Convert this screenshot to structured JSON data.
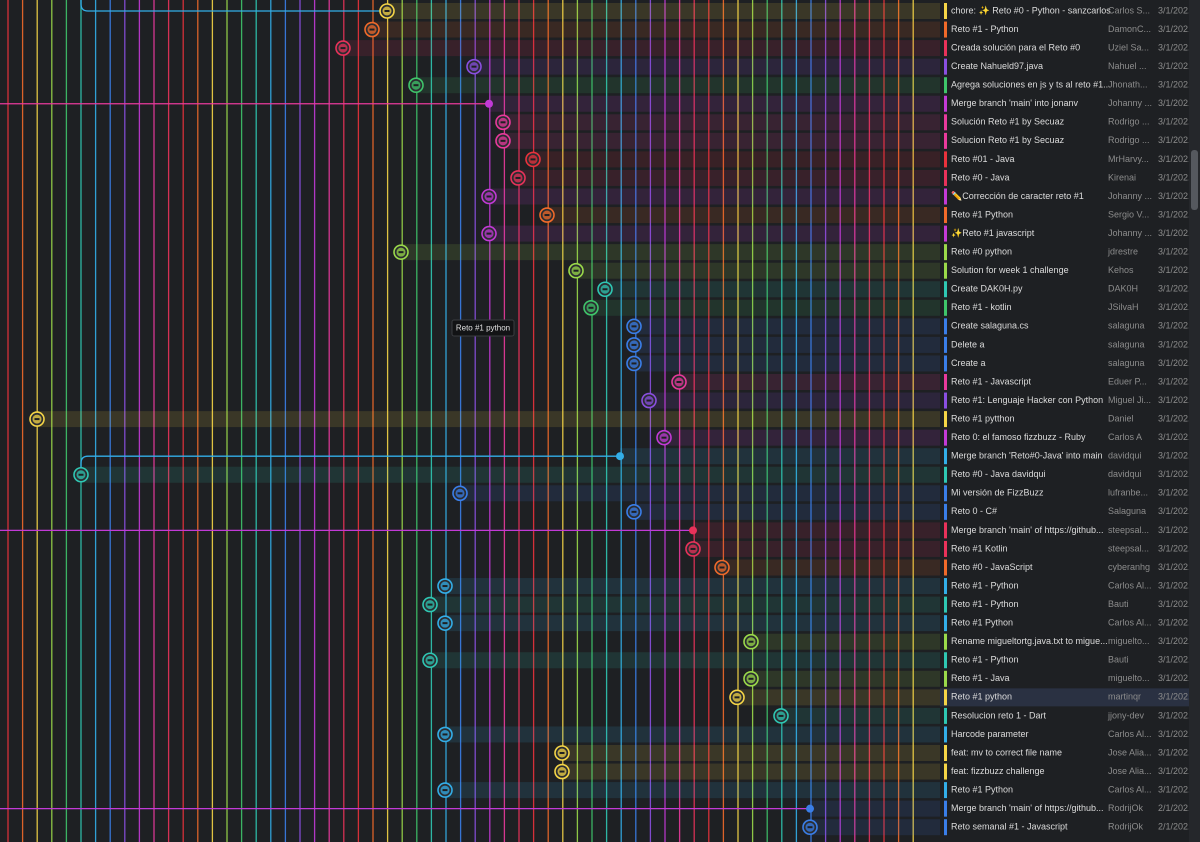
{
  "commits": [
    {
      "message": "chore: ✨ Reto #0 - Python - sanzcarlos",
      "author": "Carlos S...",
      "date": "3/1/202..."
    },
    {
      "message": "Reto #1 - Python",
      "author": "DamonC...",
      "date": "3/1/202..."
    },
    {
      "message": "Creada solución para el Reto #0",
      "author": "Uziel Sa...",
      "date": "3/1/202..."
    },
    {
      "message": "Create Nahueld97.java",
      "author": "Nahuel ...",
      "date": "3/1/202..."
    },
    {
      "message": "Agrega soluciones en js y ts al reto #1...",
      "author": "Jhonath...",
      "date": "3/1/202..."
    },
    {
      "message": "Merge branch 'main' into jonanv",
      "author": "Johanny ...",
      "date": "3/1/202..."
    },
    {
      "message": "Solución Reto #1 by Secuaz",
      "author": "Rodrigo ...",
      "date": "3/1/202..."
    },
    {
      "message": "Solucion Reto #1 by Secuaz",
      "author": "Rodrigo ...",
      "date": "3/1/202..."
    },
    {
      "message": "Reto #01 - Java",
      "author": "MrHarvy...",
      "date": "3/1/202..."
    },
    {
      "message": "Reto #0 - Java",
      "author": "Kirenai",
      "date": "3/1/202..."
    },
    {
      "message": "✏️Corrección de caracter reto #1",
      "author": "Johanny ...",
      "date": "3/1/202..."
    },
    {
      "message": "Reto #1 Python",
      "author": "Sergio V...",
      "date": "3/1/202..."
    },
    {
      "message": "✨Reto #1 javascript",
      "author": "Johanny ...",
      "date": "3/1/202..."
    },
    {
      "message": "Reto #0 python",
      "author": "jdrestre",
      "date": "3/1/202..."
    },
    {
      "message": "Solution for week 1 challenge",
      "author": "Kehos",
      "date": "3/1/202..."
    },
    {
      "message": "Create DAK0H.py",
      "author": "DAK0H",
      "date": "3/1/202..."
    },
    {
      "message": "Reto #1 - kotlin",
      "author": "JSilvaH",
      "date": "3/1/202..."
    },
    {
      "message": "Create salaguna.cs",
      "author": "salaguna",
      "date": "3/1/202..."
    },
    {
      "message": "Delete a",
      "author": "salaguna",
      "date": "3/1/202..."
    },
    {
      "message": "Create a",
      "author": "salaguna",
      "date": "3/1/202..."
    },
    {
      "message": "Reto #1 - Javascript",
      "author": "Eduer P...",
      "date": "3/1/202..."
    },
    {
      "message": "Reto #1: Lenguaje Hacker con Python",
      "author": "Miguel Ji...",
      "date": "3/1/202..."
    },
    {
      "message": "Reto #1 pytthon",
      "author": "Daniel",
      "date": "3/1/202..."
    },
    {
      "message": "Reto 0: el famoso fizzbuzz - Ruby",
      "author": "Carlos A",
      "date": "3/1/202..."
    },
    {
      "message": "Merge branch 'Reto#0-Java' into main",
      "author": "davidqui",
      "date": "3/1/202..."
    },
    {
      "message": "Reto #0 - Java davidqui",
      "author": "davidqui",
      "date": "3/1/202..."
    },
    {
      "message": "Mi versión de FizzBuzz",
      "author": "lufranbe...",
      "date": "3/1/202..."
    },
    {
      "message": "Reto 0 - C#",
      "author": "Salaguna",
      "date": "3/1/202..."
    },
    {
      "message": "Merge branch 'main' of https://github...",
      "author": "steepsal...",
      "date": "3/1/202..."
    },
    {
      "message": "Reto #1 Kotlin",
      "author": "steepsal...",
      "date": "3/1/202..."
    },
    {
      "message": "Reto #0 - JavaScript",
      "author": "cyberanhg",
      "date": "3/1/202..."
    },
    {
      "message": "Reto #1 - Python",
      "author": "Carlos Al...",
      "date": "3/1/202..."
    },
    {
      "message": "Reto #1 - Python",
      "author": "Bauti",
      "date": "3/1/202..."
    },
    {
      "message": "Reto #1 Python",
      "author": "Carlos Al...",
      "date": "3/1/202..."
    },
    {
      "message": "Rename migueltortg.java.txt to migue...",
      "author": "miguelto...",
      "date": "3/1/202..."
    },
    {
      "message": "Reto #1 - Python",
      "author": "Bauti",
      "date": "3/1/202..."
    },
    {
      "message": "Reto #1 - Java",
      "author": "miguelto...",
      "date": "3/1/202..."
    },
    {
      "message": "Reto #1 python",
      "author": "martinqr",
      "date": "3/1/202..."
    },
    {
      "message": "Resolucion reto 1 - Dart",
      "author": "jjony-dev",
      "date": "3/1/202..."
    },
    {
      "message": "Harcode parameter",
      "author": "Carlos Al...",
      "date": "3/1/202..."
    },
    {
      "message": "feat: mv to correct file name",
      "author": "Jose Alia...",
      "date": "3/1/202..."
    },
    {
      "message": "feat: fizzbuzz challenge",
      "author": "Jose Alia...",
      "date": "3/1/202..."
    },
    {
      "message": "Reto #1 Python",
      "author": "Carlos Al...",
      "date": "3/1/202..."
    },
    {
      "message": "Merge branch 'main' of https://github...",
      "author": "RodrijOk",
      "date": "2/1/202..."
    },
    {
      "message": "Reto semanal #1 - Javascript",
      "author": "RodrijOk",
      "date": "2/1/202..."
    }
  ],
  "tooltip": "Reto #1 python"
}
